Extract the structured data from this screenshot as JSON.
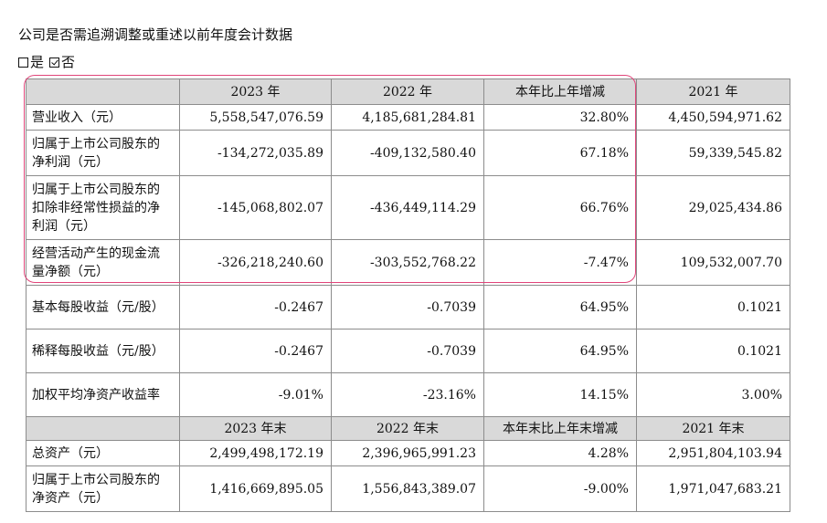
{
  "heading": "公司是否需追溯调整或重述以前年度会计数据",
  "options": [
    {
      "label": "是",
      "checked": false
    },
    {
      "label": "否",
      "checked": true
    }
  ],
  "table": {
    "header1": [
      "",
      "2023 年",
      "2022 年",
      "本年比上年增减",
      "2021 年"
    ],
    "rows1": [
      {
        "label": "营业收入（元）",
        "values": [
          "5,558,547,076.59",
          "4,185,681,284.81",
          "32.80%",
          "4,450,594,971.62"
        ]
      },
      {
        "label": "归属于上市公司股东的净利润（元）",
        "values": [
          "-134,272,035.89",
          "-409,132,580.40",
          "67.18%",
          "59,339,545.82"
        ]
      },
      {
        "label": "归属于上市公司股东的扣除非经常性损益的净利润（元）",
        "values": [
          "-145,068,802.07",
          "-436,449,114.29",
          "66.76%",
          "29,025,434.86"
        ]
      },
      {
        "label": "经营活动产生的现金流量净额（元）",
        "values": [
          "-326,218,240.60",
          "-303,552,768.22",
          "-7.47%",
          "109,532,007.70"
        ]
      },
      {
        "label": "基本每股收益（元/股）",
        "values": [
          "-0.2467",
          "-0.7039",
          "64.95%",
          "0.1021"
        ]
      },
      {
        "label": "稀释每股收益（元/股）",
        "values": [
          "-0.2467",
          "-0.7039",
          "64.95%",
          "0.1021"
        ]
      },
      {
        "label": "加权平均净资产收益率",
        "values": [
          "-9.01%",
          "-23.16%",
          "14.15%",
          "3.00%"
        ]
      }
    ],
    "header2": [
      "",
      "2023 年末",
      "2022 年末",
      "本年末比上年末增减",
      "2021 年末"
    ],
    "rows2": [
      {
        "label": "总资产（元）",
        "values": [
          "2,499,498,172.19",
          "2,396,965,991.23",
          "4.28%",
          "2,951,804,103.94"
        ]
      },
      {
        "label": "归属于上市公司股东的净资产（元）",
        "values": [
          "1,416,669,895.05",
          "1,556,843,389.07",
          "-9.00%",
          "1,971,047,683.21"
        ]
      }
    ]
  },
  "highlight_color": "#e0457a"
}
